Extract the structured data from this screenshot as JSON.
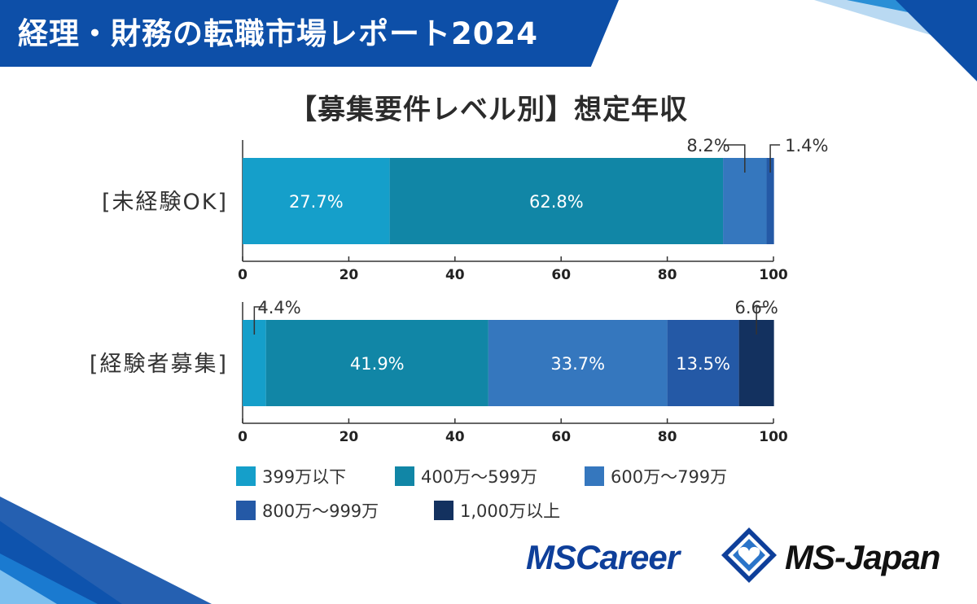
{
  "header": {
    "title": "経理・財務の転職市場レポート2024"
  },
  "chart_title": "【募集要件レベル別】想定年収",
  "colors": {
    "banner": "#0d4fa8",
    "series": [
      "#159fca",
      "#1186a6",
      "#3577be",
      "#2459a6",
      "#13315f"
    ]
  },
  "chart_data": {
    "type": "bar",
    "orientation": "horizontal",
    "stacked": true,
    "title": "【募集要件レベル別】想定年収",
    "categories": [
      "[未経験OK]",
      "[経験者募集]"
    ],
    "xlim": [
      0,
      100
    ],
    "x_ticks": [
      "0",
      "20",
      "40",
      "60",
      "80",
      "100"
    ],
    "grid": false,
    "legend_position": "bottom",
    "series": [
      {
        "name": "399万以下",
        "values": [
          27.7,
          4.4
        ]
      },
      {
        "name": "400万～599万",
        "values": [
          62.8,
          41.9
        ]
      },
      {
        "name": "600万～799万",
        "values": [
          8.2,
          33.7
        ]
      },
      {
        "name": "800万～999万",
        "values": [
          1.4,
          13.5
        ]
      },
      {
        "name": "1,000万以上",
        "values": [
          0,
          6.6
        ]
      }
    ],
    "data_labels": [
      [
        "27.7%",
        "62.8%",
        "8.2%",
        "1.4%",
        ""
      ],
      [
        "4.4%",
        "41.9%",
        "33.7%",
        "13.5%",
        "6.6%"
      ]
    ]
  },
  "logos": {
    "left": "MSCareer",
    "right": "MS-Japan"
  }
}
